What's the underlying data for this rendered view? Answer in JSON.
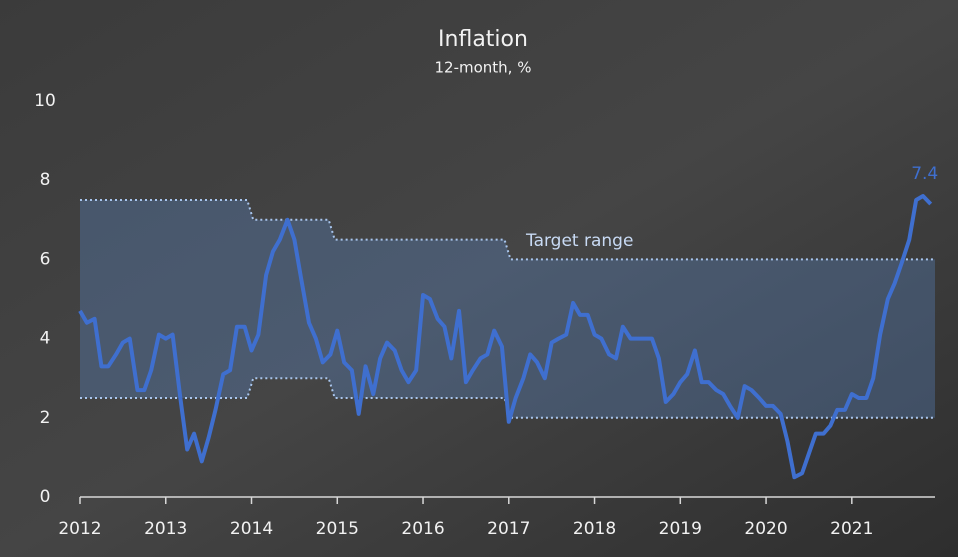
{
  "chart_data": {
    "type": "line",
    "title": "Inflation",
    "subtitle": "12-month, %",
    "x": [
      2012.0,
      2012.08,
      2012.17,
      2012.25,
      2012.33,
      2012.42,
      2012.5,
      2012.58,
      2012.67,
      2012.75,
      2012.83,
      2012.92,
      2013.0,
      2013.08,
      2013.17,
      2013.25,
      2013.33,
      2013.42,
      2013.5,
      2013.58,
      2013.67,
      2013.75,
      2013.83,
      2013.92,
      2014.0,
      2014.08,
      2014.17,
      2014.25,
      2014.33,
      2014.42,
      2014.5,
      2014.58,
      2014.67,
      2014.75,
      2014.83,
      2014.92,
      2015.0,
      2015.08,
      2015.17,
      2015.25,
      2015.33,
      2015.42,
      2015.5,
      2015.58,
      2015.67,
      2015.75,
      2015.83,
      2015.92,
      2016.0,
      2016.08,
      2016.17,
      2016.25,
      2016.33,
      2016.42,
      2016.5,
      2016.58,
      2016.67,
      2016.75,
      2016.83,
      2016.92,
      2017.0,
      2017.08,
      2017.17,
      2017.25,
      2017.33,
      2017.42,
      2017.5,
      2017.58,
      2017.67,
      2017.75,
      2017.83,
      2017.92,
      2018.0,
      2018.08,
      2018.17,
      2018.25,
      2018.33,
      2018.42,
      2018.5,
      2018.58,
      2018.67,
      2018.75,
      2018.83,
      2018.92,
      2019.0,
      2019.08,
      2019.17,
      2019.25,
      2019.33,
      2019.42,
      2019.5,
      2019.58,
      2019.67,
      2019.75,
      2019.83,
      2019.92,
      2020.0,
      2020.08,
      2020.17,
      2020.25,
      2020.33,
      2020.42,
      2020.5,
      2020.58,
      2020.67,
      2020.75,
      2020.83,
      2020.92,
      2021.0,
      2021.08,
      2021.17,
      2021.25,
      2021.33,
      2021.42,
      2021.5,
      2021.58,
      2021.67,
      2021.75,
      2021.83,
      2021.92
    ],
    "series": [
      {
        "name": "Inflation",
        "color": "#3f6fcf",
        "values": [
          4.7,
          4.4,
          4.5,
          3.3,
          3.3,
          3.6,
          3.9,
          4.0,
          2.7,
          2.7,
          3.2,
          4.1,
          4.0,
          4.1,
          2.5,
          1.2,
          1.6,
          0.9,
          1.5,
          2.2,
          3.1,
          3.2,
          4.3,
          4.3,
          3.7,
          4.1,
          5.6,
          6.2,
          6.5,
          7.0,
          6.5,
          5.5,
          4.4,
          4.0,
          3.4,
          3.6,
          4.2,
          3.4,
          3.2,
          2.1,
          3.3,
          2.6,
          3.5,
          3.9,
          3.7,
          3.2,
          2.9,
          3.2,
          5.1,
          5.0,
          4.5,
          4.3,
          3.5,
          4.7,
          2.9,
          3.2,
          3.5,
          3.6,
          4.2,
          3.8,
          1.9,
          2.5,
          3.0,
          3.6,
          3.4,
          3.0,
          3.9,
          4.0,
          4.1,
          4.9,
          4.6,
          4.6,
          4.1,
          4.0,
          3.6,
          3.5,
          4.3,
          4.0,
          4.0,
          4.0,
          4.0,
          3.5,
          2.4,
          2.6,
          2.9,
          3.1,
          3.7,
          2.9,
          2.9,
          2.7,
          2.6,
          2.3,
          2.0,
          2.8,
          2.7,
          2.5,
          2.3,
          2.3,
          2.1,
          1.4,
          0.5,
          0.6,
          1.1,
          1.6,
          1.6,
          1.8,
          2.2,
          2.2,
          2.6,
          2.5,
          2.5,
          3.0,
          4.1,
          5.0,
          5.4,
          5.9,
          6.5,
          7.5,
          7.6,
          7.4
        ]
      }
    ],
    "target_range": {
      "name": "Target range",
      "color": "#a9c6ee",
      "x": [
        2012.0,
        2013.95,
        2014.02,
        2014.9,
        2014.97,
        2016.95,
        2017.02,
        2021.97
      ],
      "upper": [
        7.5,
        7.5,
        7.0,
        7.0,
        6.5,
        6.5,
        6.0,
        6.0
      ],
      "lower": [
        2.5,
        2.5,
        3.0,
        3.0,
        2.5,
        2.5,
        2.0,
        2.0
      ]
    },
    "xlim": [
      2012.0,
      2021.97
    ],
    "xticks": [
      2012,
      2013,
      2014,
      2015,
      2016,
      2017,
      2018,
      2019,
      2020,
      2021
    ],
    "ylim": [
      0,
      10
    ],
    "yticks": [
      0,
      2,
      4,
      6,
      8,
      10
    ],
    "grid": false
  }
}
